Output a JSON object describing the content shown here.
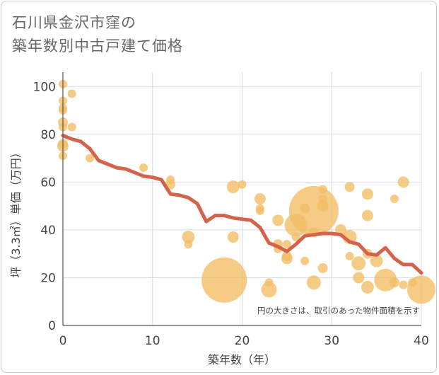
{
  "title_lines": [
    "石川県金沢市窪の",
    "築年数別中古戸建て価格"
  ],
  "chart_data": {
    "type": "scatter",
    "xlabel": "築年数（年）",
    "ylabel": "坪（3.3㎡）単価（万円）",
    "xlim": [
      0,
      40
    ],
    "ylim": [
      0,
      106
    ],
    "xticks": [
      0,
      10,
      20,
      30,
      40
    ],
    "yticks": [
      0,
      20,
      40,
      60,
      80,
      100
    ],
    "grid": true,
    "note": "円の大きさは、取引のあった物件面積を示す",
    "colors": {
      "bubble": "#f2bc64",
      "line": "#d4634c",
      "grid": "#d5dde8",
      "axis": "#555555"
    },
    "points": [
      {
        "x": 0,
        "y": 101,
        "s": 6
      },
      {
        "x": 0,
        "y": 94,
        "s": 6
      },
      {
        "x": 0,
        "y": 91,
        "s": 6
      },
      {
        "x": 0,
        "y": 90,
        "s": 6
      },
      {
        "x": 0,
        "y": 85,
        "s": 7
      },
      {
        "x": 0,
        "y": 83,
        "s": 6
      },
      {
        "x": 0,
        "y": 76,
        "s": 7
      },
      {
        "x": 0,
        "y": 75,
        "s": 8
      },
      {
        "x": 0,
        "y": 71,
        "s": 6
      },
      {
        "x": 1,
        "y": 97,
        "s": 6
      },
      {
        "x": 1,
        "y": 83,
        "s": 6
      },
      {
        "x": 3,
        "y": 70,
        "s": 6
      },
      {
        "x": 9,
        "y": 66,
        "s": 6
      },
      {
        "x": 12,
        "y": 61,
        "s": 6
      },
      {
        "x": 12,
        "y": 59,
        "s": 7
      },
      {
        "x": 14,
        "y": 37,
        "s": 9
      },
      {
        "x": 14,
        "y": 34,
        "s": 6
      },
      {
        "x": 18,
        "y": 19,
        "s": 32
      },
      {
        "x": 19,
        "y": 58,
        "s": 9
      },
      {
        "x": 19,
        "y": 37,
        "s": 8
      },
      {
        "x": 20,
        "y": 59,
        "s": 6
      },
      {
        "x": 22,
        "y": 53,
        "s": 8
      },
      {
        "x": 22,
        "y": 49,
        "s": 6
      },
      {
        "x": 22,
        "y": 48,
        "s": 6
      },
      {
        "x": 23,
        "y": 18,
        "s": 6
      },
      {
        "x": 23,
        "y": 15,
        "s": 11
      },
      {
        "x": 24,
        "y": 44,
        "s": 8
      },
      {
        "x": 24,
        "y": 34,
        "s": 7
      },
      {
        "x": 24,
        "y": 32,
        "s": 6
      },
      {
        "x": 25,
        "y": 34,
        "s": 6
      },
      {
        "x": 25,
        "y": 29,
        "s": 7
      },
      {
        "x": 25,
        "y": 28,
        "s": 8
      },
      {
        "x": 26,
        "y": 42,
        "s": 16
      },
      {
        "x": 26,
        "y": 37,
        "s": 6
      },
      {
        "x": 27,
        "y": 49,
        "s": 7
      },
      {
        "x": 27,
        "y": 27,
        "s": 6
      },
      {
        "x": 28,
        "y": 48,
        "s": 35
      },
      {
        "x": 28,
        "y": 39,
        "s": 7
      },
      {
        "x": 28,
        "y": 18,
        "s": 10
      },
      {
        "x": 29,
        "y": 57,
        "s": 6
      },
      {
        "x": 29,
        "y": 53,
        "s": 6
      },
      {
        "x": 29,
        "y": 50,
        "s": 8
      },
      {
        "x": 29,
        "y": 24,
        "s": 7
      },
      {
        "x": 31,
        "y": 40,
        "s": 8
      },
      {
        "x": 32,
        "y": 58,
        "s": 7
      },
      {
        "x": 32,
        "y": 37,
        "s": 10
      },
      {
        "x": 32,
        "y": 29,
        "s": 6
      },
      {
        "x": 33,
        "y": 26,
        "s": 10
      },
      {
        "x": 33,
        "y": 20,
        "s": 8
      },
      {
        "x": 34,
        "y": 55,
        "s": 8
      },
      {
        "x": 34,
        "y": 46,
        "s": 8
      },
      {
        "x": 34,
        "y": 30,
        "s": 7
      },
      {
        "x": 34,
        "y": 16,
        "s": 9
      },
      {
        "x": 35,
        "y": 27,
        "s": 9
      },
      {
        "x": 36,
        "y": 19,
        "s": 16
      },
      {
        "x": 37,
        "y": 53,
        "s": 6
      },
      {
        "x": 37,
        "y": 18,
        "s": 7
      },
      {
        "x": 38,
        "y": 60,
        "s": 8
      },
      {
        "x": 38,
        "y": 17,
        "s": 6
      },
      {
        "x": 39,
        "y": 18,
        "s": 6
      },
      {
        "x": 40,
        "y": 15,
        "s": 20
      }
    ],
    "trend": [
      {
        "x": 0,
        "y": 79.5
      },
      {
        "x": 1,
        "y": 78
      },
      {
        "x": 2,
        "y": 77
      },
      {
        "x": 3,
        "y": 74
      },
      {
        "x": 4,
        "y": 69
      },
      {
        "x": 5,
        "y": 67.5
      },
      {
        "x": 6,
        "y": 66
      },
      {
        "x": 7,
        "y": 65.5
      },
      {
        "x": 8,
        "y": 64
      },
      {
        "x": 9,
        "y": 62.5
      },
      {
        "x": 10,
        "y": 62
      },
      {
        "x": 11,
        "y": 61
      },
      {
        "x": 12,
        "y": 55
      },
      {
        "x": 13,
        "y": 54.5
      },
      {
        "x": 14,
        "y": 53.5
      },
      {
        "x": 15,
        "y": 51
      },
      {
        "x": 16,
        "y": 43.5
      },
      {
        "x": 17,
        "y": 46
      },
      {
        "x": 18,
        "y": 46
      },
      {
        "x": 19,
        "y": 45
      },
      {
        "x": 20,
        "y": 44.5
      },
      {
        "x": 21,
        "y": 44
      },
      {
        "x": 22,
        "y": 41
      },
      {
        "x": 23,
        "y": 34.5
      },
      {
        "x": 24,
        "y": 33
      },
      {
        "x": 25,
        "y": 31
      },
      {
        "x": 26,
        "y": 34
      },
      {
        "x": 27,
        "y": 37.5
      },
      {
        "x": 28,
        "y": 38
      },
      {
        "x": 29,
        "y": 38.5
      },
      {
        "x": 30,
        "y": 38.5
      },
      {
        "x": 31,
        "y": 38
      },
      {
        "x": 32,
        "y": 35
      },
      {
        "x": 33,
        "y": 34
      },
      {
        "x": 34,
        "y": 30
      },
      {
        "x": 35,
        "y": 29.5
      },
      {
        "x": 36,
        "y": 32.5
      },
      {
        "x": 37,
        "y": 28
      },
      {
        "x": 38,
        "y": 25.5
      },
      {
        "x": 39,
        "y": 25.5
      },
      {
        "x": 40,
        "y": 22
      }
    ]
  }
}
